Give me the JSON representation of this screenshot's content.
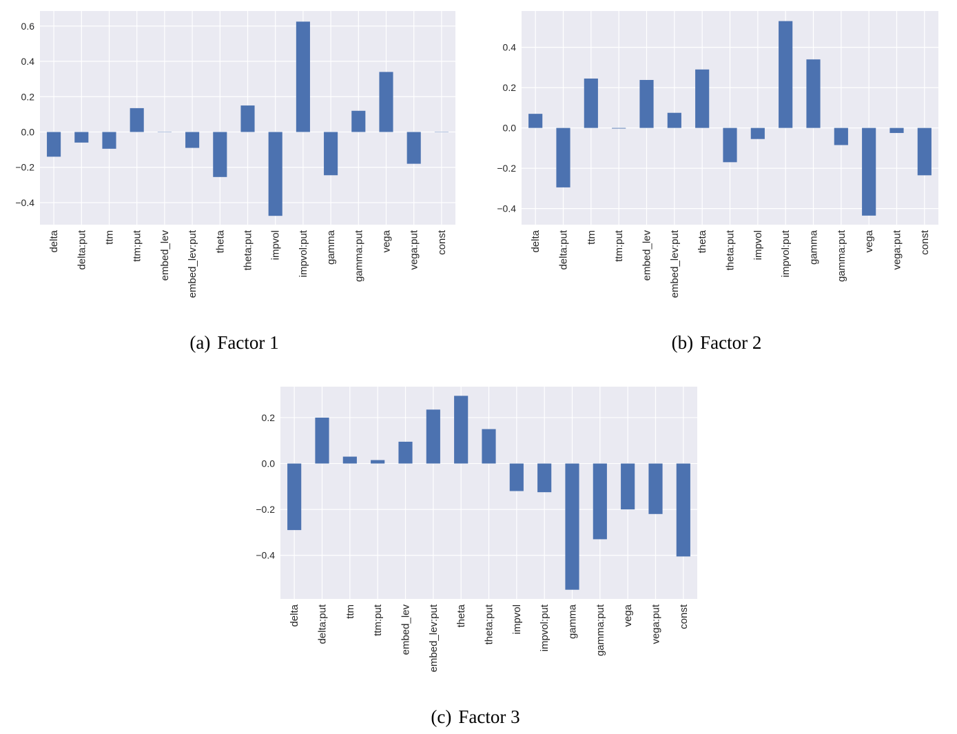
{
  "colors": {
    "plot_background": "#eaeaf2",
    "grid": "#ffffff",
    "bar": "#4c72b0",
    "text": "#262626"
  },
  "captions": [
    {
      "tag": "(a)",
      "text": "Factor 1"
    },
    {
      "tag": "(b)",
      "text": "Factor 2"
    },
    {
      "tag": "(c)",
      "text": "Factor 3"
    }
  ],
  "chart_data": [
    {
      "type": "bar",
      "title": "",
      "categories": [
        "delta",
        "delta:put",
        "ttm",
        "ttm:put",
        "embed_lev",
        "embed_lev:put",
        "theta",
        "theta:put",
        "impvol",
        "impvol:put",
        "gamma",
        "gamma:put",
        "vega",
        "vega:put",
        "const"
      ],
      "values": [
        -0.14,
        -0.06,
        -0.095,
        0.135,
        0.0,
        -0.09,
        -0.255,
        0.15,
        -0.475,
        0.625,
        -0.245,
        0.12,
        0.34,
        -0.18,
        0.0
      ],
      "yticks": [
        -0.4,
        -0.2,
        0.0,
        0.2,
        0.4,
        0.6
      ],
      "ytick_labels": [
        "−0.4",
        "−0.2",
        "0.0",
        "0.2",
        "0.4",
        "0.6"
      ],
      "ylim": [
        -0.525,
        0.685
      ],
      "grid": true
    },
    {
      "type": "bar",
      "title": "",
      "categories": [
        "delta",
        "delta:put",
        "ttm",
        "ttm:put",
        "embed_lev",
        "embed_lev:put",
        "theta",
        "theta:put",
        "impvol",
        "impvol:put",
        "gamma",
        "gamma:put",
        "vega",
        "vega:put",
        "const"
      ],
      "values": [
        0.07,
        -0.295,
        0.245,
        -0.003,
        0.238,
        0.075,
        0.29,
        -0.17,
        -0.055,
        0.53,
        0.34,
        -0.085,
        -0.435,
        -0.025,
        -0.235
      ],
      "yticks": [
        -0.4,
        -0.2,
        0.0,
        0.2,
        0.4
      ],
      "ytick_labels": [
        "−0.4",
        "−0.2",
        "0.0",
        "0.2",
        "0.4"
      ],
      "ylim": [
        -0.48,
        0.58
      ],
      "grid": true
    },
    {
      "type": "bar",
      "title": "",
      "categories": [
        "delta",
        "delta:put",
        "ttm",
        "ttm:put",
        "embed_lev",
        "embed_lev:put",
        "theta",
        "theta:put",
        "impvol",
        "impvol:put",
        "gamma",
        "gamma:put",
        "vega",
        "vega:put",
        "const"
      ],
      "values": [
        -0.29,
        0.2,
        0.03,
        0.015,
        0.095,
        0.235,
        0.295,
        0.15,
        -0.12,
        -0.125,
        -0.55,
        -0.33,
        -0.2,
        -0.22,
        -0.405
      ],
      "yticks": [
        -0.4,
        -0.2,
        0.0,
        0.2
      ],
      "ytick_labels": [
        "−0.4",
        "−0.2",
        "0.0",
        "0.2"
      ],
      "ylim": [
        -0.59,
        0.335
      ],
      "grid": true
    }
  ]
}
